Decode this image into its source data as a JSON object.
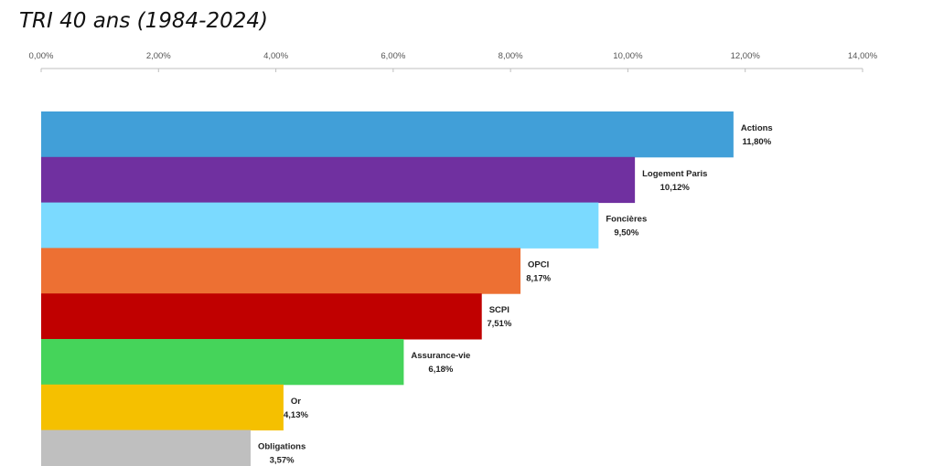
{
  "chart_data": {
    "type": "bar",
    "orientation": "horizontal",
    "title": "TRI 40 ans (1984-2024)",
    "xlabel": "",
    "ylabel": "",
    "xlim": [
      0,
      14
    ],
    "x_axis_position": "top",
    "grid": false,
    "legend": "none",
    "ticks": [
      "0,00%",
      "2,00%",
      "4,00%",
      "6,00%",
      "8,00%",
      "10,00%",
      "12,00%",
      "14,00%"
    ],
    "bars": [
      {
        "category": "Actions",
        "value": 11.8,
        "label": "11,80%",
        "color": "#419FD8"
      },
      {
        "category": "Logement Paris",
        "value": 10.12,
        "label": "10,12%",
        "color": "#7030A0"
      },
      {
        "category": "Foncières",
        "value": 9.5,
        "label": "9,50%",
        "color": "#7BDAFF"
      },
      {
        "category": "OPCI",
        "value": 8.17,
        "label": "8,17%",
        "color": "#ED7033"
      },
      {
        "category": "SCPI",
        "value": 7.51,
        "label": "7,51%",
        "color": "#C00000"
      },
      {
        "category": "Assurance-vie",
        "value": 6.18,
        "label": "6,18%",
        "color": "#45D45A"
      },
      {
        "category": "Or",
        "value": 4.13,
        "label": "4,13%",
        "color": "#F5C000"
      },
      {
        "category": "Obligations",
        "value": 3.57,
        "label": "3,57%",
        "color": "#BFBFBF"
      }
    ]
  }
}
